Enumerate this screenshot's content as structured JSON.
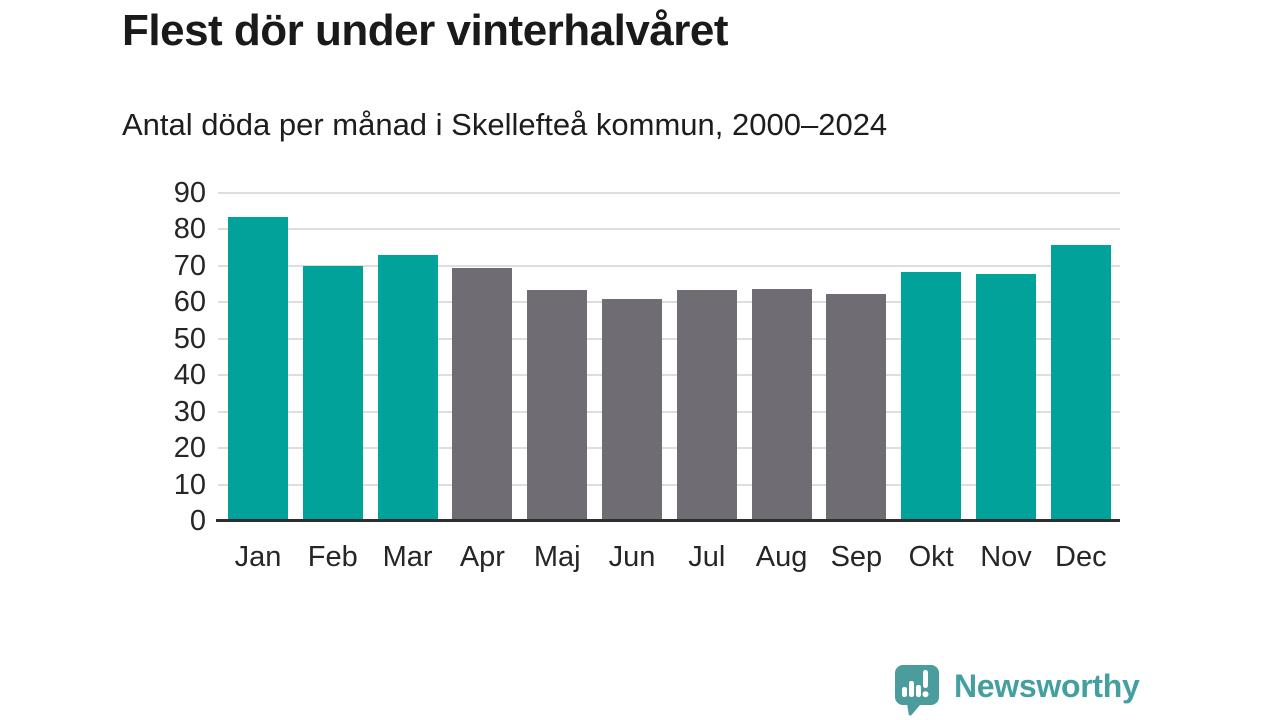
{
  "header": {
    "title": "Flest dör under vinterhalvåret",
    "subtitle": "Antal döda per månad i Skellefteå kommun, 2000–2024"
  },
  "chart_data": {
    "type": "bar",
    "title": "Flest dör under vinterhalvåret",
    "subtitle": "Antal döda per månad i Skellefteå kommun, 2000–2024",
    "categories": [
      "Jan",
      "Feb",
      "Mar",
      "Apr",
      "Maj",
      "Jun",
      "Jul",
      "Aug",
      "Sep",
      "Okt",
      "Nov",
      "Dec"
    ],
    "values": [
      83.5,
      70.0,
      73.0,
      69.5,
      63.5,
      61.0,
      63.3,
      63.8,
      62.3,
      68.3,
      67.8,
      75.8
    ],
    "bar_colors": [
      "winter",
      "winter",
      "winter",
      "summer",
      "summer",
      "summer",
      "summer",
      "summer",
      "summer",
      "winter",
      "winter",
      "winter"
    ],
    "palette": {
      "winter": "#00a29a",
      "summer": "#6f6c74"
    },
    "xlabel": "",
    "ylabel": "",
    "ylim": [
      0,
      90
    ],
    "y_ticks": [
      0,
      10,
      20,
      30,
      40,
      50,
      60,
      70,
      80,
      90
    ],
    "grid": "horizontal",
    "legend": "none"
  },
  "footer": {
    "brand": "Newsworthy",
    "brand_text_color": "#44a0a0",
    "logo_bubble_color": "#4a9d9c",
    "logo_glyph_color": "#ffffff"
  }
}
